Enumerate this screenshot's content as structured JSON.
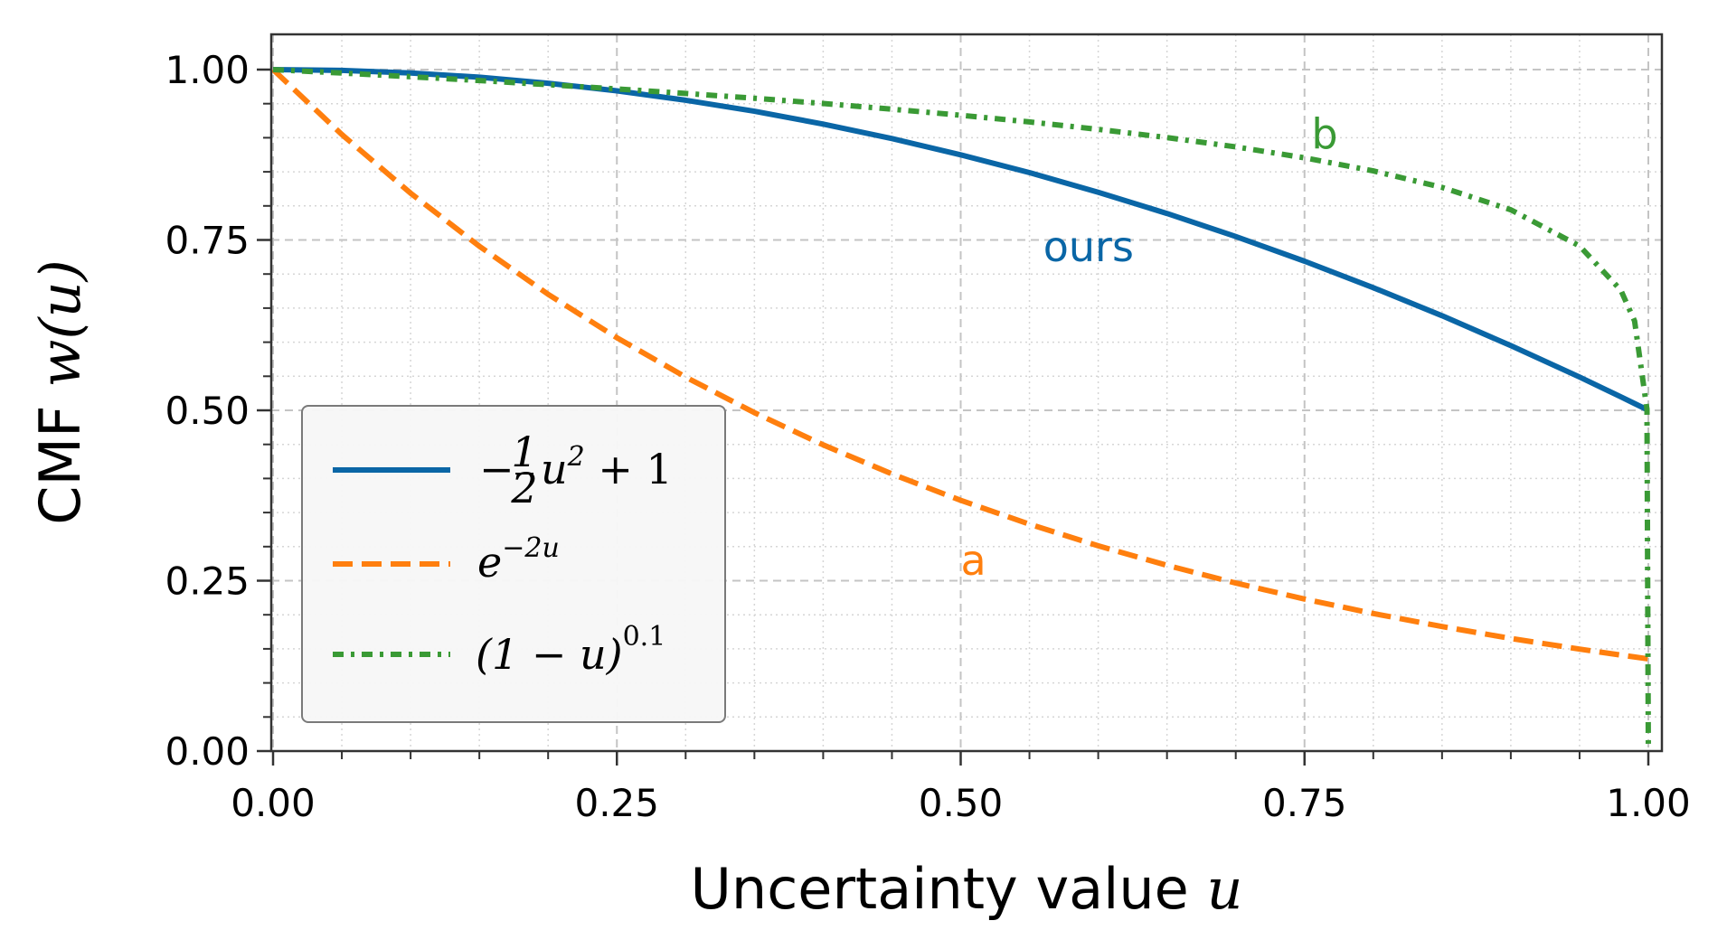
{
  "chart_data": {
    "type": "line",
    "title": "",
    "xlabel": "Uncertainty value",
    "xlabel_math": "u",
    "ylabel": "CMF",
    "ylabel_math": "w(u)",
    "xlim": [
      0,
      1
    ],
    "ylim": [
      0,
      1
    ],
    "x_major_ticks": [
      0,
      0.25,
      0.5,
      0.75,
      1
    ],
    "y_major_ticks": [
      0,
      0.25,
      0.5,
      0.75,
      1
    ],
    "x_tick_labels": [
      "0.00",
      "0.25",
      "0.50",
      "0.75",
      "1.00"
    ],
    "y_tick_labels": [
      "0.00",
      "0.25",
      "0.50",
      "0.75",
      "1.00"
    ],
    "grid": {
      "major": true,
      "minor": true,
      "major_style": "dashed",
      "minor_style": "dotted"
    },
    "legend_position": "lower-left",
    "x": [
      0,
      0.05,
      0.1,
      0.15,
      0.2,
      0.25,
      0.3,
      0.35,
      0.4,
      0.45,
      0.5,
      0.55,
      0.6,
      0.65,
      0.7,
      0.75,
      0.8,
      0.85,
      0.9,
      0.95,
      0.98,
      0.99,
      0.999,
      1.0
    ],
    "series": [
      {
        "name": "-½u²+1",
        "legend_main": "−",
        "legend_frac_num": "1",
        "legend_frac_den": "2",
        "legend_u": "u",
        "legend_sup": "2",
        "legend_tail": " + 1",
        "color": "#0a66a6",
        "style": "solid",
        "values": [
          1.0,
          0.9988,
          0.995,
          0.9888,
          0.98,
          0.9688,
          0.955,
          0.9388,
          0.92,
          0.8988,
          0.875,
          0.8488,
          0.82,
          0.7888,
          0.755,
          0.7188,
          0.68,
          0.6388,
          0.595,
          0.5488,
          0.5198,
          0.5099,
          0.501,
          0.5
        ]
      },
      {
        "name": "e^(−2u)",
        "legend_main": "e",
        "legend_sup": "−2u",
        "color": "#ff7f0e",
        "style": "dashed",
        "values": [
          1.0,
          0.9048,
          0.8187,
          0.7408,
          0.6703,
          0.6065,
          0.5488,
          0.4966,
          0.4493,
          0.4066,
          0.3679,
          0.3329,
          0.3012,
          0.2725,
          0.2466,
          0.2231,
          0.2019,
          0.1827,
          0.1653,
          0.1496,
          0.1409,
          0.1381,
          0.1356,
          0.1353
        ]
      },
      {
        "name": "(1−u)^0.1",
        "legend_main": "(1 − u)",
        "legend_sup": "0.1",
        "color": "#3a9a35",
        "style": "dashdot",
        "values": [
          1.0,
          0.9949,
          0.9895,
          0.9839,
          0.9779,
          0.9716,
          0.965,
          0.958,
          0.9502,
          0.9419,
          0.933,
          0.9232,
          0.9124,
          0.9003,
          0.8866,
          0.8706,
          0.8513,
          0.8272,
          0.7943,
          0.7411,
          0.6762,
          0.631,
          0.5012,
          0.0
        ]
      }
    ],
    "annotations": [
      {
        "text": "ours",
        "x": 0.56,
        "y": 0.74,
        "color": "#0a66a6"
      },
      {
        "text": "a",
        "x": 0.5,
        "y": 0.28,
        "color": "#ff7f0e"
      },
      {
        "text": "b",
        "x": 0.755,
        "y": 0.905,
        "color": "#3a9a35"
      }
    ]
  }
}
